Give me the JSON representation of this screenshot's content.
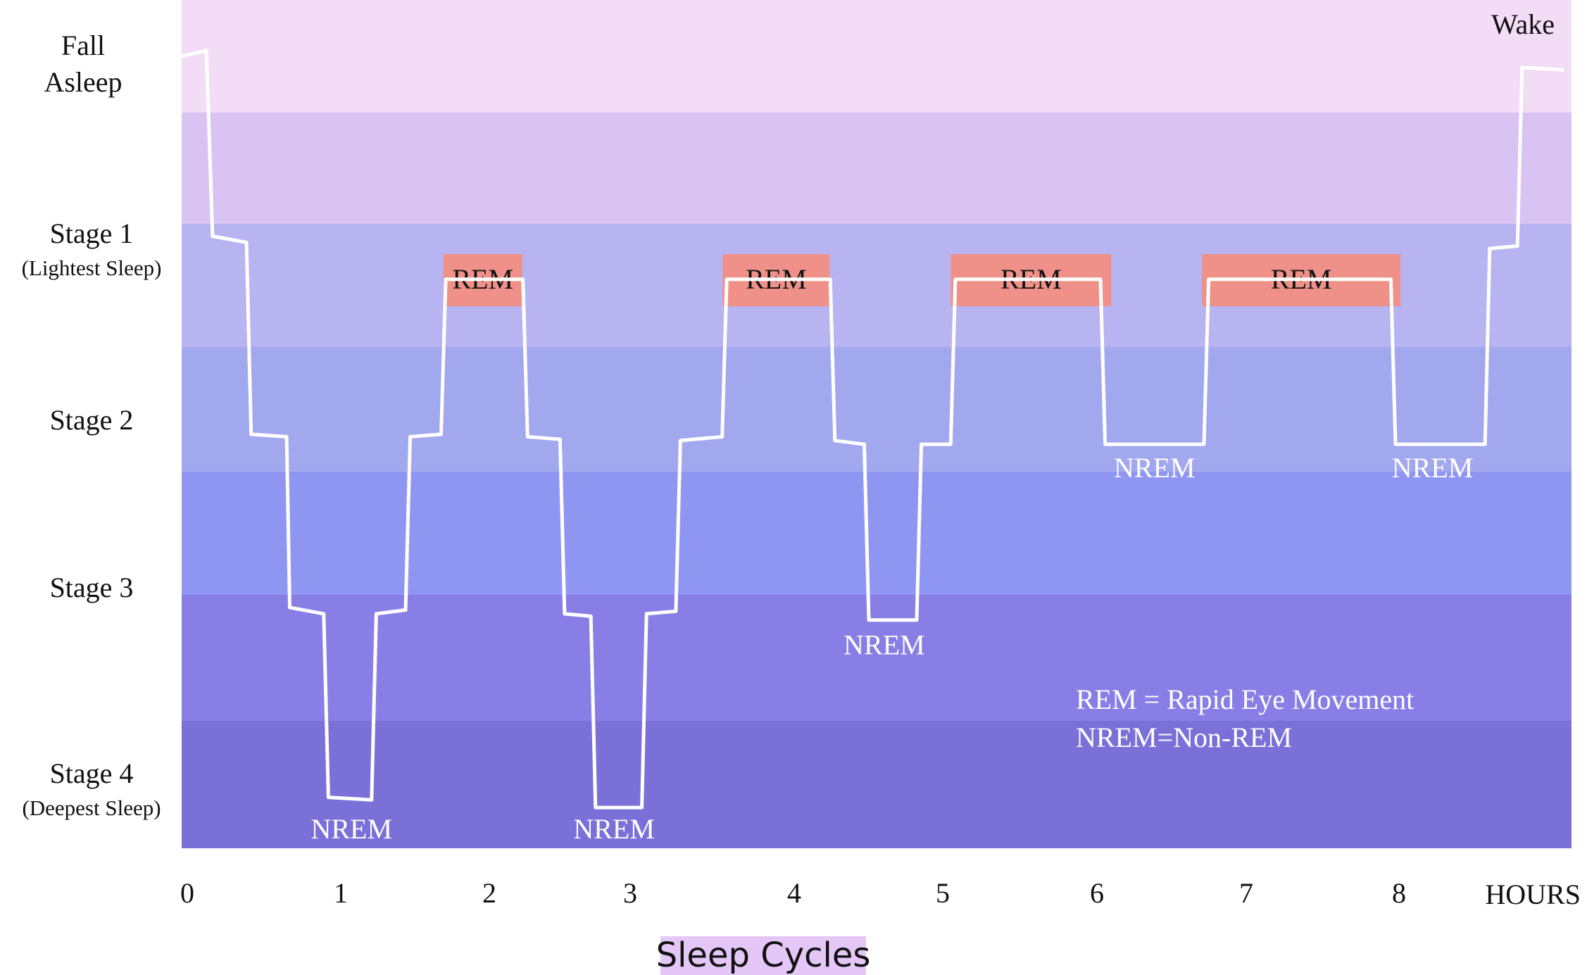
{
  "chart_data": {
    "type": "line",
    "title": "",
    "xlabel": "Sleep Cycles",
    "xunit_label": "HOURS",
    "x_ticks": [
      "0",
      "1",
      "2",
      "3",
      "4",
      "5",
      "6",
      "7",
      "8"
    ],
    "xlim": [
      0,
      9
    ],
    "levels": [
      {
        "key": "wake",
        "label": "Fall",
        "label2": "Asleep",
        "color": "#f3dcf6"
      },
      {
        "key": "light",
        "label": "",
        "label2": "",
        "color": "#d9c3f3"
      },
      {
        "key": "stage1",
        "label": "Stage 1",
        "label2": "(Lightest Sleep)",
        "color": "#b8b4f2"
      },
      {
        "key": "stage2",
        "label": "Stage 2",
        "label2": "",
        "color": "#a1a8ee"
      },
      {
        "key": "stage2b",
        "label": "",
        "label2": "",
        "color": "#8f96f2"
      },
      {
        "key": "stage3",
        "label": "Stage 3",
        "label2": "",
        "color": "#887ee5"
      },
      {
        "key": "stage4",
        "label": "Stage 4",
        "label2": "(Deepest Sleep)",
        "color": "#7b70d8"
      }
    ],
    "wake_label": "Wake",
    "series": [
      {
        "points": [
          [
            0,
            0.5
          ],
          [
            0.16,
            0.45
          ],
          [
            0.2,
            2.1
          ],
          [
            0.42,
            2.15
          ],
          [
            0.45,
            3.7
          ],
          [
            0.68,
            3.72
          ],
          [
            0.7,
            5.1
          ],
          [
            0.92,
            5.15
          ],
          [
            0.95,
            6.6
          ],
          [
            1.23,
            6.62
          ],
          [
            1.26,
            5.15
          ],
          [
            1.45,
            5.12
          ],
          [
            1.48,
            3.72
          ],
          [
            1.68,
            3.7
          ],
          [
            1.71,
            2.45
          ],
          [
            2.21,
            2.45
          ],
          [
            2.24,
            3.72
          ],
          [
            2.45,
            3.74
          ],
          [
            2.48,
            5.15
          ],
          [
            2.65,
            5.17
          ],
          [
            2.68,
            6.68
          ],
          [
            2.98,
            6.68
          ],
          [
            3.01,
            5.15
          ],
          [
            3.2,
            5.13
          ],
          [
            3.23,
            3.75
          ],
          [
            3.5,
            3.72
          ],
          [
            3.53,
            2.45
          ],
          [
            4.2,
            2.45
          ],
          [
            4.23,
            3.75
          ],
          [
            4.42,
            3.78
          ],
          [
            4.45,
            5.2
          ],
          [
            4.76,
            5.2
          ],
          [
            4.79,
            3.78
          ],
          [
            4.98,
            3.78
          ],
          [
            5.01,
            2.45
          ],
          [
            5.95,
            2.45
          ],
          [
            5.98,
            3.78
          ],
          [
            6.62,
            3.78
          ],
          [
            6.65,
            2.45
          ],
          [
            7.83,
            2.45
          ],
          [
            7.86,
            3.78
          ],
          [
            8.44,
            3.78
          ],
          [
            8.47,
            2.2
          ],
          [
            8.65,
            2.18
          ],
          [
            8.68,
            0.6
          ],
          [
            8.95,
            0.62
          ]
        ]
      }
    ],
    "annotations": [
      {
        "text": "REM",
        "x": 1.95,
        "y": 2.35,
        "kind": "rem-box"
      },
      {
        "text": "REM",
        "x": 3.85,
        "y": 2.35,
        "kind": "rem-box"
      },
      {
        "text": "REM",
        "x": 5.5,
        "y": 2.35,
        "kind": "rem-box"
      },
      {
        "text": "REM",
        "x": 7.25,
        "y": 2.35,
        "kind": "rem-box"
      },
      {
        "text": "NREM",
        "x": 1.1,
        "y": 6.8,
        "kind": "label"
      },
      {
        "text": "NREM",
        "x": 2.8,
        "y": 6.8,
        "kind": "label"
      },
      {
        "text": "NREM",
        "x": 4.55,
        "y": 5.35,
        "kind": "label"
      },
      {
        "text": "NREM",
        "x": 6.3,
        "y": 3.92,
        "kind": "label"
      },
      {
        "text": "NREM",
        "x": 8.1,
        "y": 3.92,
        "kind": "label"
      }
    ],
    "legend_lines": [
      "REM = Rapid Eye Movement",
      "NREM=Non-REM"
    ],
    "colors": {
      "line": "#ffffff",
      "rem_box": "#ef9188",
      "text_dark": "#111111",
      "text_light": "#ffffff",
      "caption_bg": "#e4c7f7"
    }
  }
}
